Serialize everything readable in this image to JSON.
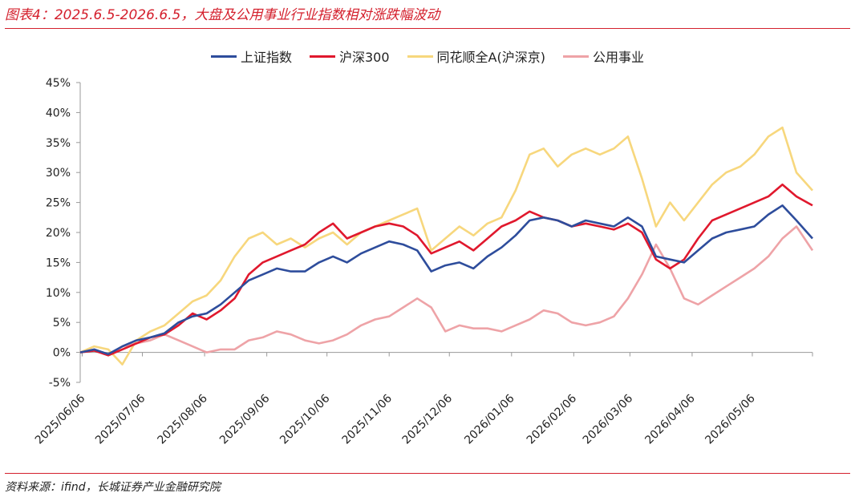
{
  "header": {
    "title": "图表4：2025.6.5-2026.6.5，大盘及公用事业行业指数相对涨跌幅波动"
  },
  "footer": {
    "source": "资料来源：ifind，长城证券产业金融研究院"
  },
  "colors": {
    "accent": "#d4202d"
  },
  "chart_data": {
    "type": "line",
    "title": "",
    "xlabel": "",
    "ylabel": "",
    "ylim": [
      -5,
      45
    ],
    "y_ticks": [
      -5,
      0,
      5,
      10,
      15,
      20,
      25,
      30,
      35,
      40,
      45
    ],
    "y_tick_labels": [
      "-5%",
      "0%",
      "5%",
      "10%",
      "15%",
      "20%",
      "25%",
      "30%",
      "35%",
      "40%",
      "45%"
    ],
    "x_range": [
      "2025-06-05",
      "2026-06-05"
    ],
    "x_tick_labels": [
      "2025/06/06",
      "2025/07/06",
      "2025/08/06",
      "2025/09/06",
      "2025/10/06",
      "2025/11/06",
      "2025/12/06",
      "2026/01/06",
      "2026/02/06",
      "2026/03/06",
      "2026/04/06",
      "2026/05/06"
    ],
    "grid": false,
    "legend_position": "top-center",
    "series": [
      {
        "name": "上证指数",
        "color": "#2e4d9c",
        "points": [
          [
            "2025-06-05",
            0
          ],
          [
            "2025-06-12",
            0.5
          ],
          [
            "2025-06-19",
            -0.3
          ],
          [
            "2025-06-26",
            1
          ],
          [
            "2025-07-03",
            2
          ],
          [
            "2025-07-10",
            2.5
          ],
          [
            "2025-07-17",
            3.2
          ],
          [
            "2025-07-24",
            5
          ],
          [
            "2025-07-31",
            6
          ],
          [
            "2025-08-07",
            6.5
          ],
          [
            "2025-08-14",
            8
          ],
          [
            "2025-08-21",
            10
          ],
          [
            "2025-08-28",
            12
          ],
          [
            "2025-09-04",
            13
          ],
          [
            "2025-09-11",
            14
          ],
          [
            "2025-09-18",
            13.5
          ],
          [
            "2025-09-25",
            13.5
          ],
          [
            "2025-10-02",
            15
          ],
          [
            "2025-10-09",
            16
          ],
          [
            "2025-10-16",
            15
          ],
          [
            "2025-10-23",
            16.5
          ],
          [
            "2025-10-30",
            17.5
          ],
          [
            "2025-11-06",
            18.5
          ],
          [
            "2025-11-13",
            18
          ],
          [
            "2025-11-20",
            17
          ],
          [
            "2025-11-27",
            13.5
          ],
          [
            "2025-12-04",
            14.5
          ],
          [
            "2025-12-11",
            15
          ],
          [
            "2025-12-18",
            14
          ],
          [
            "2025-12-25",
            16
          ],
          [
            "2026-01-01",
            17.5
          ],
          [
            "2026-01-08",
            19.5
          ],
          [
            "2026-01-15",
            22
          ],
          [
            "2026-01-22",
            22.5
          ],
          [
            "2026-01-29",
            22
          ],
          [
            "2026-02-05",
            21
          ],
          [
            "2026-02-12",
            22
          ],
          [
            "2026-02-19",
            21.5
          ],
          [
            "2026-02-26",
            21
          ],
          [
            "2026-03-05",
            22.5
          ],
          [
            "2026-03-12",
            21
          ],
          [
            "2026-03-19",
            16
          ],
          [
            "2026-03-26",
            15.5
          ],
          [
            "2026-04-02",
            15
          ],
          [
            "2026-04-09",
            17
          ],
          [
            "2026-04-16",
            19
          ],
          [
            "2026-04-23",
            20
          ],
          [
            "2026-04-30",
            20.5
          ],
          [
            "2026-05-07",
            21
          ],
          [
            "2026-05-14",
            23
          ],
          [
            "2026-05-21",
            24.5
          ],
          [
            "2026-05-28",
            22
          ],
          [
            "2026-06-05",
            19
          ]
        ]
      },
      {
        "name": "沪深300",
        "color": "#e0182d",
        "points": [
          [
            "2025-06-05",
            0
          ],
          [
            "2025-06-12",
            0.3
          ],
          [
            "2025-06-19",
            -0.5
          ],
          [
            "2025-06-26",
            0.5
          ],
          [
            "2025-07-03",
            1.5
          ],
          [
            "2025-07-10",
            2.5
          ],
          [
            "2025-07-17",
            3
          ],
          [
            "2025-07-24",
            4.5
          ],
          [
            "2025-07-31",
            6.5
          ],
          [
            "2025-08-07",
            5.5
          ],
          [
            "2025-08-14",
            7
          ],
          [
            "2025-08-21",
            9
          ],
          [
            "2025-08-28",
            13
          ],
          [
            "2025-09-04",
            15
          ],
          [
            "2025-09-11",
            16
          ],
          [
            "2025-09-18",
            17
          ],
          [
            "2025-09-25",
            18
          ],
          [
            "2025-10-02",
            20
          ],
          [
            "2025-10-09",
            21.5
          ],
          [
            "2025-10-16",
            19
          ],
          [
            "2025-10-23",
            20
          ],
          [
            "2025-10-30",
            21
          ],
          [
            "2025-11-06",
            21.5
          ],
          [
            "2025-11-13",
            21
          ],
          [
            "2025-11-20",
            19.5
          ],
          [
            "2025-11-27",
            16.5
          ],
          [
            "2025-12-04",
            17.5
          ],
          [
            "2025-12-11",
            18.5
          ],
          [
            "2025-12-18",
            17
          ],
          [
            "2025-12-25",
            19
          ],
          [
            "2026-01-01",
            21
          ],
          [
            "2026-01-08",
            22
          ],
          [
            "2026-01-15",
            23.5
          ],
          [
            "2026-01-22",
            22.5
          ],
          [
            "2026-01-29",
            22
          ],
          [
            "2026-02-05",
            21
          ],
          [
            "2026-02-12",
            21.5
          ],
          [
            "2026-02-19",
            21
          ],
          [
            "2026-02-26",
            20.5
          ],
          [
            "2026-03-05",
            21.5
          ],
          [
            "2026-03-12",
            20
          ],
          [
            "2026-03-19",
            15.5
          ],
          [
            "2026-03-26",
            14
          ],
          [
            "2026-04-02",
            15.5
          ],
          [
            "2026-04-09",
            19
          ],
          [
            "2026-04-16",
            22
          ],
          [
            "2026-04-23",
            23
          ],
          [
            "2026-04-30",
            24
          ],
          [
            "2026-05-07",
            25
          ],
          [
            "2026-05-14",
            26
          ],
          [
            "2026-05-21",
            28
          ],
          [
            "2026-05-28",
            26
          ],
          [
            "2026-06-05",
            24.5
          ]
        ]
      },
      {
        "name": "同花顺全A(沪深京)",
        "color": "#f7d77d",
        "points": [
          [
            "2025-06-05",
            0
          ],
          [
            "2025-06-12",
            1
          ],
          [
            "2025-06-19",
            0.5
          ],
          [
            "2025-06-26",
            -2
          ],
          [
            "2025-07-03",
            2
          ],
          [
            "2025-07-10",
            3.5
          ],
          [
            "2025-07-17",
            4.5
          ],
          [
            "2025-07-24",
            6.5
          ],
          [
            "2025-07-31",
            8.5
          ],
          [
            "2025-08-07",
            9.5
          ],
          [
            "2025-08-14",
            12
          ],
          [
            "2025-08-21",
            16
          ],
          [
            "2025-08-28",
            19
          ],
          [
            "2025-09-04",
            20
          ],
          [
            "2025-09-11",
            18
          ],
          [
            "2025-09-18",
            19
          ],
          [
            "2025-09-25",
            17.5
          ],
          [
            "2025-10-02",
            19
          ],
          [
            "2025-10-09",
            20
          ],
          [
            "2025-10-16",
            18
          ],
          [
            "2025-10-23",
            20
          ],
          [
            "2025-10-30",
            21
          ],
          [
            "2025-11-06",
            22
          ],
          [
            "2025-11-13",
            23
          ],
          [
            "2025-11-20",
            24
          ],
          [
            "2025-11-27",
            17
          ],
          [
            "2025-12-04",
            19
          ],
          [
            "2025-12-11",
            21
          ],
          [
            "2025-12-18",
            19.5
          ],
          [
            "2025-12-25",
            21.5
          ],
          [
            "2026-01-01",
            22.5
          ],
          [
            "2026-01-08",
            27
          ],
          [
            "2026-01-15",
            33
          ],
          [
            "2026-01-22",
            34
          ],
          [
            "2026-01-29",
            31
          ],
          [
            "2026-02-05",
            33
          ],
          [
            "2026-02-12",
            34
          ],
          [
            "2026-02-19",
            33
          ],
          [
            "2026-02-26",
            34
          ],
          [
            "2026-03-05",
            36
          ],
          [
            "2026-03-12",
            29
          ],
          [
            "2026-03-19",
            21
          ],
          [
            "2026-03-26",
            25
          ],
          [
            "2026-04-02",
            22
          ],
          [
            "2026-04-09",
            25
          ],
          [
            "2026-04-16",
            28
          ],
          [
            "2026-04-23",
            30
          ],
          [
            "2026-04-30",
            31
          ],
          [
            "2026-05-07",
            33
          ],
          [
            "2026-05-14",
            36
          ],
          [
            "2026-05-21",
            37.5
          ],
          [
            "2026-05-28",
            30
          ],
          [
            "2026-06-05",
            27
          ]
        ]
      },
      {
        "name": "公用事业",
        "color": "#eea3a7",
        "points": [
          [
            "2025-06-05",
            0
          ],
          [
            "2025-06-12",
            0.5
          ],
          [
            "2025-06-19",
            -0.5
          ],
          [
            "2025-06-26",
            1
          ],
          [
            "2025-07-03",
            1.5
          ],
          [
            "2025-07-10",
            2
          ],
          [
            "2025-07-17",
            3
          ],
          [
            "2025-07-24",
            2
          ],
          [
            "2025-07-31",
            1
          ],
          [
            "2025-08-07",
            0
          ],
          [
            "2025-08-14",
            0.5
          ],
          [
            "2025-08-21",
            0.5
          ],
          [
            "2025-08-28",
            2
          ],
          [
            "2025-09-04",
            2.5
          ],
          [
            "2025-09-11",
            3.5
          ],
          [
            "2025-09-18",
            3
          ],
          [
            "2025-09-25",
            2
          ],
          [
            "2025-10-02",
            1.5
          ],
          [
            "2025-10-09",
            2
          ],
          [
            "2025-10-16",
            3
          ],
          [
            "2025-10-23",
            4.5
          ],
          [
            "2025-10-30",
            5.5
          ],
          [
            "2025-11-06",
            6
          ],
          [
            "2025-11-13",
            7.5
          ],
          [
            "2025-11-20",
            9
          ],
          [
            "2025-11-27",
            7.5
          ],
          [
            "2025-12-04",
            3.5
          ],
          [
            "2025-12-11",
            4.5
          ],
          [
            "2025-12-18",
            4
          ],
          [
            "2025-12-25",
            4
          ],
          [
            "2026-01-01",
            3.5
          ],
          [
            "2026-01-08",
            4.5
          ],
          [
            "2026-01-15",
            5.5
          ],
          [
            "2026-01-22",
            7
          ],
          [
            "2026-01-29",
            6.5
          ],
          [
            "2026-02-05",
            5
          ],
          [
            "2026-02-12",
            4.5
          ],
          [
            "2026-02-19",
            5
          ],
          [
            "2026-02-26",
            6
          ],
          [
            "2026-03-05",
            9
          ],
          [
            "2026-03-12",
            13
          ],
          [
            "2026-03-19",
            18
          ],
          [
            "2026-03-26",
            14
          ],
          [
            "2026-04-02",
            9
          ],
          [
            "2026-04-09",
            8
          ],
          [
            "2026-04-16",
            9.5
          ],
          [
            "2026-04-23",
            11
          ],
          [
            "2026-04-30",
            12.5
          ],
          [
            "2026-05-07",
            14
          ],
          [
            "2026-05-14",
            16
          ],
          [
            "2026-05-21",
            19
          ],
          [
            "2026-05-28",
            21
          ],
          [
            "2026-06-05",
            17
          ]
        ]
      }
    ]
  }
}
